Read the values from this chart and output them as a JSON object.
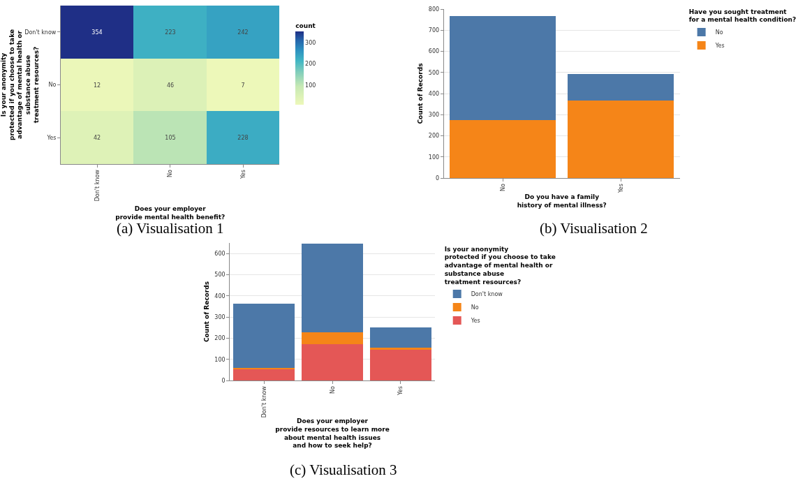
{
  "chart_data": [
    {
      "type": "heatmap",
      "xlabel": "Does your employer\nprovide mental health benefit?",
      "ylabel": "Is your anonymity\nprotected if you choose to take\nadvantage of mental health or\nsubstance abuse\ntreatment resources?",
      "categories": [
        "Don't know",
        "No",
        "Yes"
      ],
      "y_categories": [
        "Don't know",
        "No",
        "Yes"
      ],
      "cells": [
        [
          354,
          223,
          242
        ],
        [
          12,
          46,
          7
        ],
        [
          42,
          105,
          228
        ]
      ],
      "data_labels": true,
      "clabel": "count",
      "clim": [
        7,
        354
      ],
      "cticks": [
        100,
        200,
        300
      ],
      "annotations": [
        "(a) Visualisation 1"
      ]
    },
    {
      "type": "bar",
      "stacked": true,
      "xlabel": "Do you have a family\nhistory of mental illness?",
      "ylabel": "Count of Records",
      "legend_title": "Have you sought treatment\nfor a mental health condition?",
      "categories": [
        "No",
        "Yes"
      ],
      "series": [
        {
          "name": "Yes",
          "color": "#f58518",
          "values": [
            273,
            366
          ]
        },
        {
          "name": "No",
          "color": "#4c78a8",
          "values": [
            495,
            128
          ]
        }
      ],
      "ylim": [
        0,
        800
      ],
      "yticks": [
        0,
        100,
        200,
        300,
        400,
        500,
        600,
        700,
        800
      ],
      "grid": "y",
      "legend": "right",
      "annotations": [
        "(b) Visualisation 2"
      ]
    },
    {
      "type": "bar",
      "stacked": true,
      "xlabel": "Does your employer\nprovide resources to learn more\nabout mental health issues\nand how to seek help?",
      "ylabel": "Count of Records",
      "legend_title": "Is your anonymity\nprotected if you choose to take\nadvantage of mental health or\nsubstance abuse\ntreatment resources?",
      "categories": [
        "Don't know",
        "No",
        "Yes"
      ],
      "series": [
        {
          "name": "Yes",
          "color": "#e45756",
          "values": [
            56,
            171,
            148
          ]
        },
        {
          "name": "No",
          "color": "#f58518",
          "values": [
            2,
            56,
            6
          ]
        },
        {
          "name": "Don't know",
          "color": "#4c78a8",
          "values": [
            304,
            421,
            97
          ]
        }
      ],
      "ylim": [
        0,
        650
      ],
      "yticks": [
        0,
        100,
        200,
        300,
        400,
        500,
        600
      ],
      "grid": "y",
      "legend": "right",
      "annotations": [
        "(c) Visualisation 3"
      ]
    }
  ]
}
